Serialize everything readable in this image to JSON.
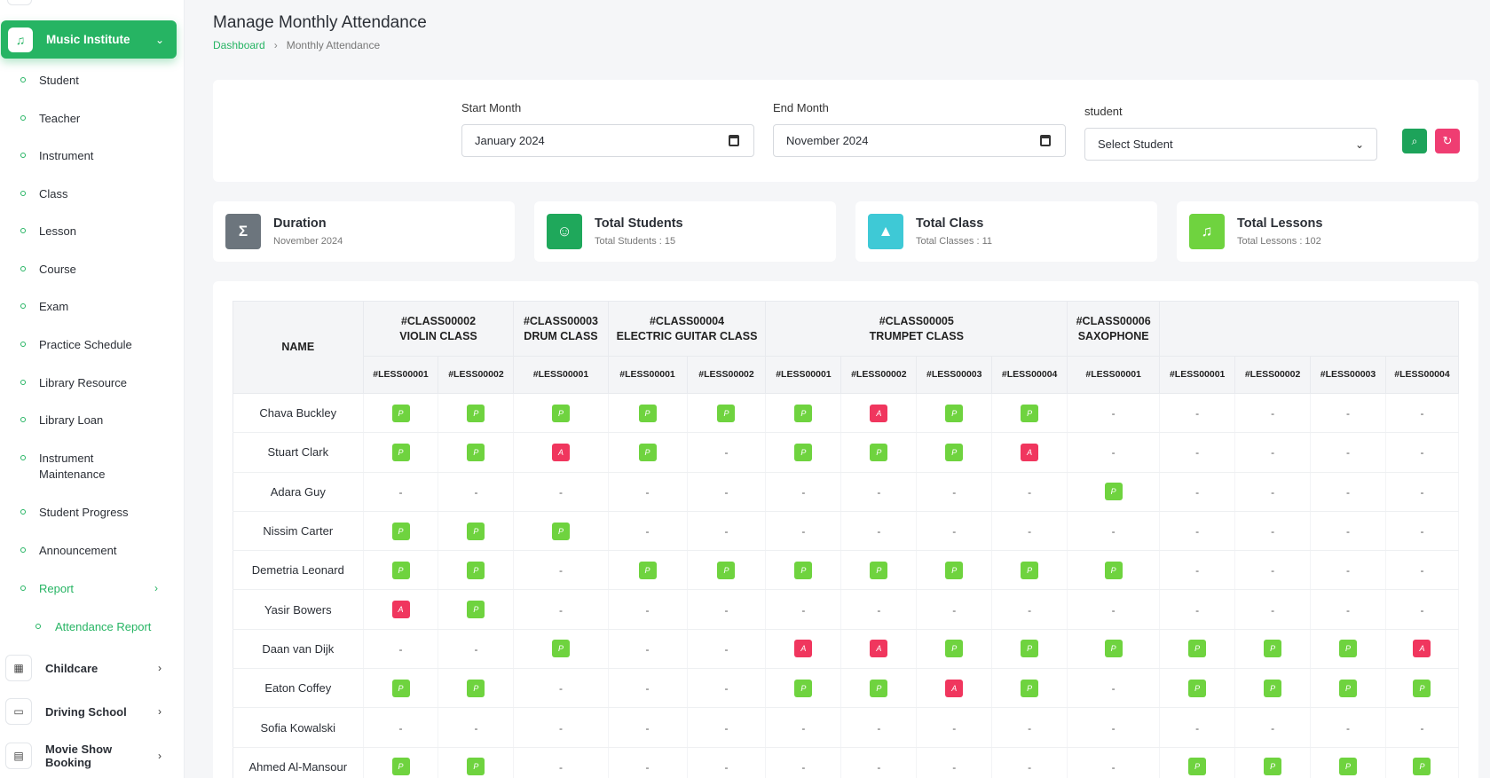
{
  "sidebar": {
    "active_group": "Music Institute",
    "items": [
      "Student",
      "Teacher",
      "Instrument",
      "Class",
      "Lesson",
      "Course",
      "Exam",
      "Practice Schedule",
      "Library Resource",
      "Library Loan",
      "Instrument Maintenance",
      "Student Progress",
      "Announcement"
    ],
    "report": "Report",
    "report_sub": "Attendance Report",
    "groups": [
      "Childcare",
      "Driving School",
      "Movie Show Booking"
    ]
  },
  "header": {
    "title": "Manage Monthly Attendance",
    "breadcrumb_link": "Dashboard",
    "breadcrumb_current": "Monthly Attendance"
  },
  "filters": {
    "start_label": "Start Month",
    "start_value": "January 2024",
    "end_label": "End Month",
    "end_value": "November 2024",
    "student_label": "student",
    "student_value": "Select Student"
  },
  "stats": [
    {
      "title": "Duration",
      "sub": "November 2024",
      "icon": "sigma-icon",
      "color": "#6c757d"
    },
    {
      "title": "Total Students",
      "sub": "Total Students : 15",
      "icon": "users-icon",
      "color": "#1fa85b"
    },
    {
      "title": "Total Class",
      "sub": "Total Classes : 11",
      "icon": "graduation-cap-icon",
      "color": "#3ec9d6"
    },
    {
      "title": "Total Lessons",
      "sub": "Total Lessons : 102",
      "icon": "music-note-icon",
      "color": "#6fd33f"
    }
  ],
  "table": {
    "name_header": "NAME",
    "classes": [
      {
        "code": "#CLASS00002",
        "name": "VIOLIN CLASS",
        "span": 2
      },
      {
        "code": "#CLASS00003",
        "name": "DRUM CLASS",
        "span": 1
      },
      {
        "code": "#CLASS00004",
        "name": "ELECTRIC GUITAR CLASS",
        "span": 2
      },
      {
        "code": "#CLASS00005",
        "name": "TRUMPET CLASS",
        "span": 4
      },
      {
        "code": "#CLASS00006",
        "name": "SAXOPHONE",
        "span": 1
      },
      {
        "code": "",
        "name": "",
        "span": 4
      }
    ],
    "lessons": [
      "#LESS00001",
      "#LESS00002",
      "#LESS00001",
      "#LESS00001",
      "#LESS00002",
      "#LESS00001",
      "#LESS00002",
      "#LESS00003",
      "#LESS00004",
      "#LESS00001",
      "#LESS00001",
      "#LESS00002",
      "#LESS00003",
      "#LESS00004"
    ],
    "rows": [
      {
        "name": "Chava Buckley",
        "marks": [
          "P",
          "P",
          "P",
          "P",
          "P",
          "P",
          "A",
          "P",
          "P",
          "-",
          "-",
          "-",
          "-",
          "-"
        ]
      },
      {
        "name": "Stuart Clark",
        "marks": [
          "P",
          "P",
          "A",
          "P",
          "-",
          "P",
          "P",
          "P",
          "A",
          "-",
          "-",
          "-",
          "-",
          "-"
        ]
      },
      {
        "name": "Adara Guy",
        "marks": [
          "-",
          "-",
          "-",
          "-",
          "-",
          "-",
          "-",
          "-",
          "-",
          "P",
          "-",
          "-",
          "-",
          "-"
        ]
      },
      {
        "name": "Nissim Carter",
        "marks": [
          "P",
          "P",
          "P",
          "-",
          "-",
          "-",
          "-",
          "-",
          "-",
          "-",
          "-",
          "-",
          "-",
          "-"
        ]
      },
      {
        "name": "Demetria Leonard",
        "marks": [
          "P",
          "P",
          "-",
          "P",
          "P",
          "P",
          "P",
          "P",
          "P",
          "P",
          "-",
          "-",
          "-",
          "-"
        ]
      },
      {
        "name": "Yasir Bowers",
        "marks": [
          "A",
          "P",
          "-",
          "-",
          "-",
          "-",
          "-",
          "-",
          "-",
          "-",
          "-",
          "-",
          "-",
          "-"
        ]
      },
      {
        "name": "Daan van Dijk",
        "marks": [
          "-",
          "-",
          "P",
          "-",
          "-",
          "A",
          "A",
          "P",
          "P",
          "P",
          "P",
          "P",
          "P",
          "A"
        ]
      },
      {
        "name": "Eaton Coffey",
        "marks": [
          "P",
          "P",
          "-",
          "-",
          "-",
          "P",
          "P",
          "A",
          "P",
          "-",
          "P",
          "P",
          "P",
          "P"
        ]
      },
      {
        "name": "Sofia Kowalski",
        "marks": [
          "-",
          "-",
          "-",
          "-",
          "-",
          "-",
          "-",
          "-",
          "-",
          "-",
          "-",
          "-",
          "-",
          "-"
        ]
      },
      {
        "name": "Ahmed Al-Mansour",
        "marks": [
          "P",
          "P",
          "-",
          "-",
          "-",
          "-",
          "-",
          "-",
          "-",
          "-",
          "P",
          "P",
          "P",
          "P"
        ]
      }
    ]
  }
}
